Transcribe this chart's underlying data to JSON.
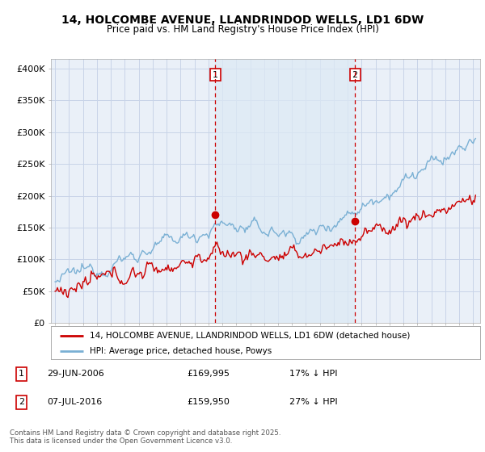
{
  "title_line1": "14, HOLCOMBE AVENUE, LLANDRINDOD WELLS, LD1 6DW",
  "title_line2": "Price paid vs. HM Land Registry's House Price Index (HPI)",
  "ylabel_ticks": [
    "£0",
    "£50K",
    "£100K",
    "£150K",
    "£200K",
    "£250K",
    "£300K",
    "£350K",
    "£400K"
  ],
  "ytick_vals": [
    0,
    50000,
    100000,
    150000,
    200000,
    250000,
    300000,
    350000,
    400000
  ],
  "ylim": [
    0,
    415000
  ],
  "xlim_start": 1994.7,
  "xlim_end": 2025.5,
  "sale1_x": 2006.49,
  "sale1_y": 169995,
  "sale1_label": "1",
  "sale2_x": 2016.52,
  "sale2_y": 159950,
  "sale2_label": "2",
  "hpi_color": "#7ab0d4",
  "hpi_fill_color": "#ddeaf5",
  "price_color": "#cc0000",
  "vline_color": "#cc0000",
  "grid_color": "#c8d4e8",
  "background_color": "#eaf0f8",
  "legend_label_price": "14, HOLCOMBE AVENUE, LLANDRINDOD WELLS, LD1 6DW (detached house)",
  "legend_label_hpi": "HPI: Average price, detached house, Powys",
  "table_row1": [
    "1",
    "29-JUN-2006",
    "£169,995",
    "17% ↓ HPI"
  ],
  "table_row2": [
    "2",
    "07-JUL-2016",
    "£159,950",
    "27% ↓ HPI"
  ],
  "footer": "Contains HM Land Registry data © Crown copyright and database right 2025.\nThis data is licensed under the Open Government Licence v3.0."
}
